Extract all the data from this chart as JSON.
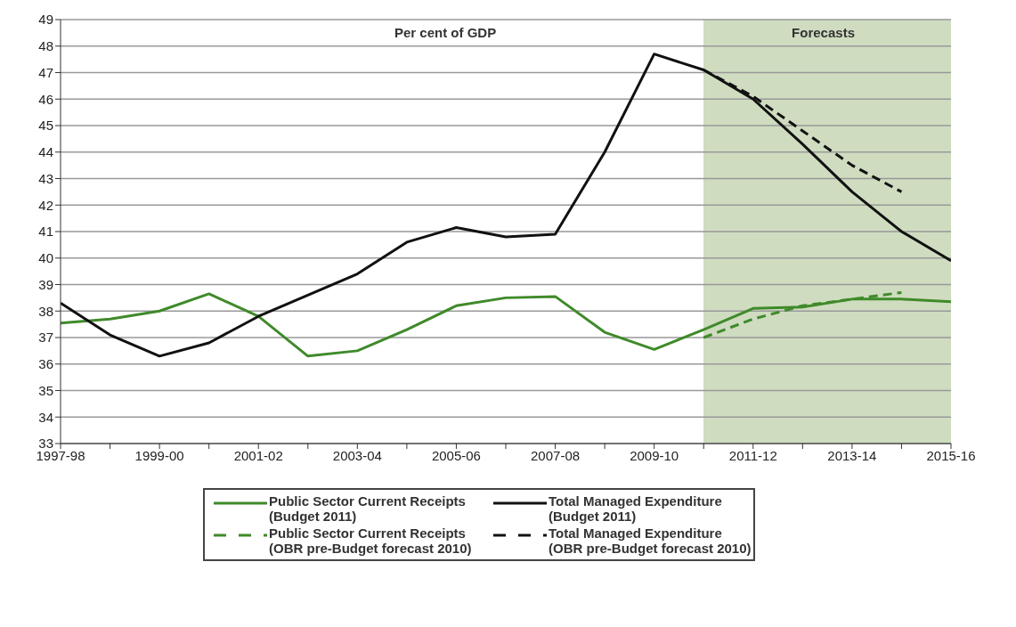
{
  "chart_data": {
    "type": "line",
    "categories": [
      "1997-98",
      null,
      "1999-00",
      null,
      "2001-02",
      null,
      "2003-04",
      null,
      "2005-06",
      null,
      "2007-08",
      null,
      "2009-10",
      null,
      "2011-12",
      null,
      "2013-14",
      null,
      "2015-16"
    ],
    "series": [
      {
        "name": "Public Sector Current Receipts (Budget 2011)",
        "color": "#3f8a2a",
        "line_style": "solid",
        "values": [
          37.55,
          37.7,
          38.0,
          38.65,
          37.8,
          36.3,
          36.5,
          37.3,
          38.2,
          38.5,
          38.55,
          37.2,
          36.55,
          37.3,
          38.1,
          38.15,
          38.45,
          38.45,
          38.35
        ]
      },
      {
        "name": "Total Managed Expenditure (Budget 2011)",
        "color": "#111111",
        "line_style": "solid",
        "values": [
          38.3,
          37.1,
          36.3,
          36.8,
          37.8,
          38.6,
          39.4,
          40.6,
          41.15,
          40.8,
          40.9,
          44.0,
          47.7,
          47.1,
          46.0,
          44.3,
          42.5,
          41.0,
          39.9
        ]
      },
      {
        "name": "Public Sector Current Receipts (OBR pre-Budget forecast 2010)",
        "color": "#3f8a2a",
        "line_style": "dashed",
        "values": [
          null,
          null,
          null,
          null,
          null,
          null,
          null,
          null,
          null,
          null,
          null,
          null,
          null,
          37.0,
          37.7,
          38.2,
          38.45,
          38.7,
          null
        ]
      },
      {
        "name": "Total Managed Expenditure (OBR pre-Budget forecast 2010)",
        "color": "#111111",
        "line_style": "dashed",
        "values": [
          null,
          null,
          null,
          null,
          null,
          null,
          null,
          null,
          null,
          null,
          null,
          null,
          null,
          47.1,
          46.1,
          44.8,
          43.5,
          42.5,
          null
        ]
      }
    ],
    "ylim": [
      33,
      49
    ],
    "yticks": [
      33,
      34,
      35,
      36,
      37,
      38,
      39,
      40,
      41,
      42,
      43,
      44,
      45,
      46,
      47,
      48,
      49
    ],
    "grid": "y",
    "legend": "bottom",
    "annotations": [
      "Per cent of GDP",
      "Forecasts"
    ]
  }
}
